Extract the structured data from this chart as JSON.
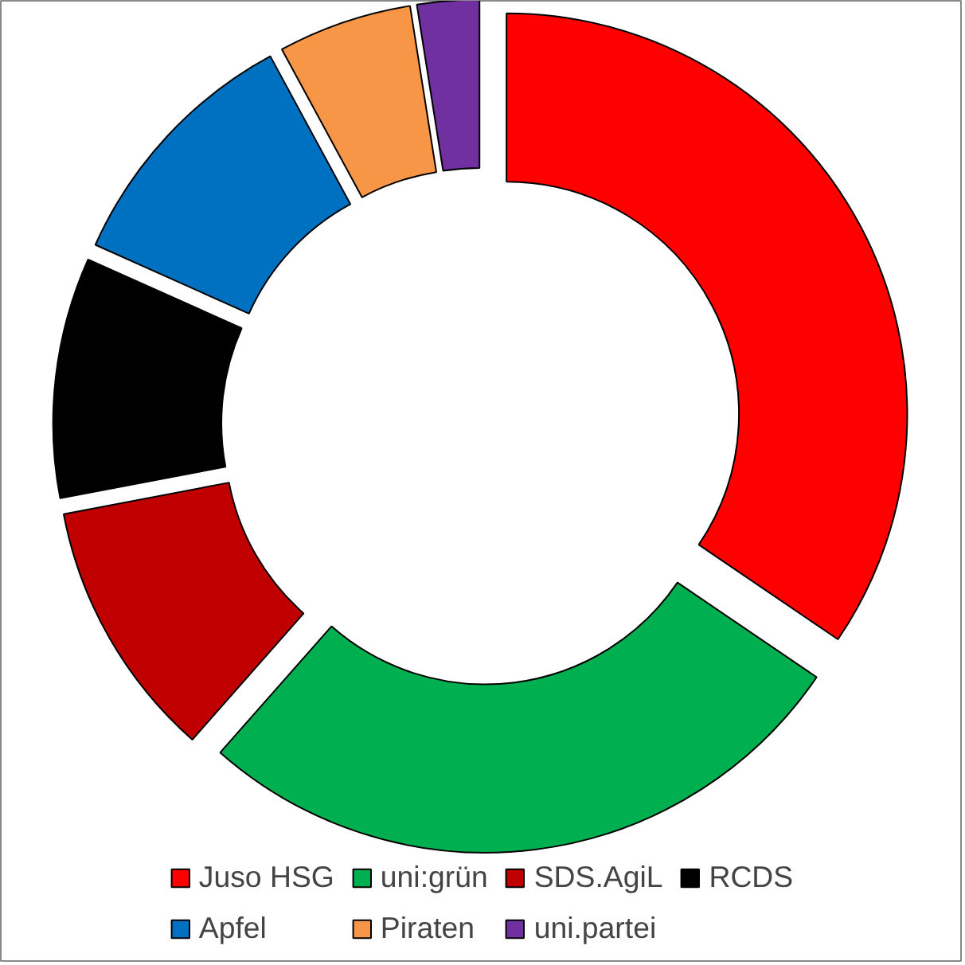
{
  "chart_data": {
    "type": "donut",
    "categories": [
      "Juso HSG",
      "uni:grün",
      "SDS.AgiL",
      "RCDS",
      "Apfel",
      "Piraten",
      "uni.partei"
    ],
    "values": [
      34.5,
      27,
      10.5,
      9.7,
      10.4,
      5.4,
      2.5
    ],
    "colors": [
      "#ff0000",
      "#00b050",
      "#c00000",
      "#000000",
      "#0070c0",
      "#f79646",
      "#7030a0"
    ],
    "legend": "bottom"
  }
}
